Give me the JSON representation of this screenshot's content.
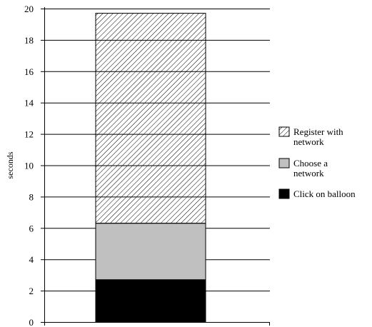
{
  "chart_data": {
    "type": "bar",
    "stacked": true,
    "categories": [
      ""
    ],
    "series": [
      {
        "name": "Click on balloon",
        "values": [
          2.7
        ],
        "fill": "solid",
        "color": "#000000"
      },
      {
        "name": "Choose a network",
        "values": [
          3.6
        ],
        "fill": "solid",
        "color": "#c0c0c0"
      },
      {
        "name": "Register with network",
        "values": [
          13.4
        ],
        "fill": "hatch",
        "color": "#000000"
      }
    ],
    "legend_order": [
      "Register with network",
      "Choose a network",
      "Click on balloon"
    ],
    "legend_lines": [
      [
        "Register with",
        "network"
      ],
      [
        "Choose a",
        "network"
      ],
      [
        "Click on balloon"
      ]
    ],
    "title": "",
    "xlabel": "",
    "ylabel": "seconds",
    "ylim": [
      0,
      20
    ],
    "yticks": [
      0,
      2,
      4,
      6,
      8,
      10,
      12,
      14,
      16,
      18,
      20
    ],
    "grid": "horizontal",
    "legend_position": "right"
  }
}
